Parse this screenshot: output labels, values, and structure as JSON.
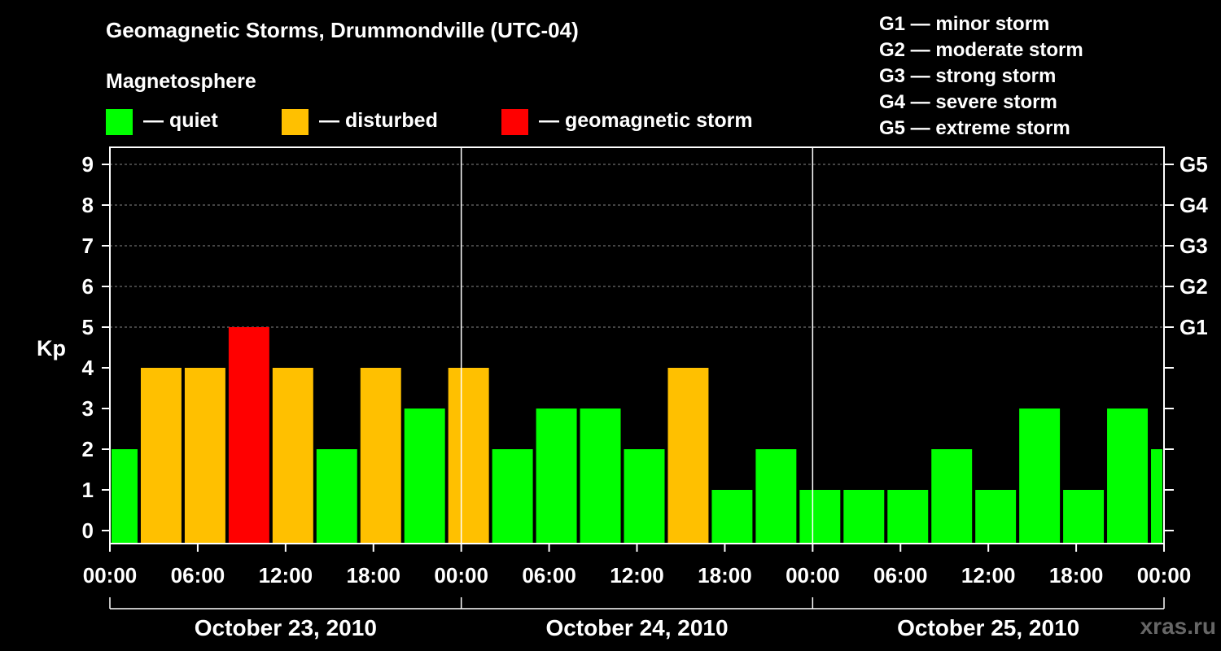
{
  "title": "Geomagnetic Storms, Drummondville (UTC-04)",
  "legend": {
    "heading": "Magnetosphere",
    "items": [
      {
        "label": "— quiet",
        "color": "#00ff00"
      },
      {
        "label": "— disturbed",
        "color": "#ffc000"
      },
      {
        "label": "— geomagnetic storm",
        "color": "#ff0000"
      }
    ]
  },
  "g_scale": [
    "G1 — minor storm",
    "G2 — moderate storm",
    "G3 — strong storm",
    "G4 — severe storm",
    "G5 — extreme storm"
  ],
  "watermark": "xras.ru",
  "chart_data": {
    "type": "bar",
    "ylabel": "Kp",
    "ylim": [
      0,
      9
    ],
    "y_ticks": [
      0,
      1,
      2,
      3,
      4,
      5,
      6,
      7,
      8,
      9
    ],
    "right_ticks": [
      {
        "value": 5,
        "label": "G1"
      },
      {
        "value": 6,
        "label": "G2"
      },
      {
        "value": 7,
        "label": "G3"
      },
      {
        "value": 8,
        "label": "G4"
      },
      {
        "value": 9,
        "label": "G5"
      }
    ],
    "x_tick_labels": [
      "00:00",
      "06:00",
      "12:00",
      "18:00",
      "00:00",
      "06:00",
      "12:00",
      "18:00",
      "00:00",
      "06:00",
      "12:00",
      "18:00",
      "00:00"
    ],
    "days": [
      "October 23, 2010",
      "October 24, 2010",
      "October 25, 2010"
    ],
    "x_unit": "hours since October 23, 2010 00:00 (UTC-04)",
    "xlim": [
      0,
      72
    ],
    "bars": [
      {
        "start": 0,
        "end": 2,
        "kp": 2,
        "color": "#00ff00"
      },
      {
        "start": 2,
        "end": 5,
        "kp": 4,
        "color": "#ffc000"
      },
      {
        "start": 5,
        "end": 8,
        "kp": 4,
        "color": "#ffc000"
      },
      {
        "start": 8,
        "end": 11,
        "kp": 5,
        "color": "#ff0000"
      },
      {
        "start": 11,
        "end": 14,
        "kp": 4,
        "color": "#ffc000"
      },
      {
        "start": 14,
        "end": 17,
        "kp": 2,
        "color": "#00ff00"
      },
      {
        "start": 17,
        "end": 20,
        "kp": 4,
        "color": "#ffc000"
      },
      {
        "start": 20,
        "end": 23,
        "kp": 3,
        "color": "#00ff00"
      },
      {
        "start": 23,
        "end": 26,
        "kp": 4,
        "color": "#ffc000"
      },
      {
        "start": 26,
        "end": 29,
        "kp": 2,
        "color": "#00ff00"
      },
      {
        "start": 29,
        "end": 32,
        "kp": 3,
        "color": "#00ff00"
      },
      {
        "start": 32,
        "end": 35,
        "kp": 3,
        "color": "#00ff00"
      },
      {
        "start": 35,
        "end": 38,
        "kp": 2,
        "color": "#00ff00"
      },
      {
        "start": 38,
        "end": 41,
        "kp": 4,
        "color": "#ffc000"
      },
      {
        "start": 41,
        "end": 44,
        "kp": 1,
        "color": "#00ff00"
      },
      {
        "start": 44,
        "end": 47,
        "kp": 2,
        "color": "#00ff00"
      },
      {
        "start": 47,
        "end": 50,
        "kp": 1,
        "color": "#00ff00"
      },
      {
        "start": 50,
        "end": 53,
        "kp": 1,
        "color": "#00ff00"
      },
      {
        "start": 53,
        "end": 56,
        "kp": 1,
        "color": "#00ff00"
      },
      {
        "start": 56,
        "end": 59,
        "kp": 2,
        "color": "#00ff00"
      },
      {
        "start": 59,
        "end": 62,
        "kp": 1,
        "color": "#00ff00"
      },
      {
        "start": 62,
        "end": 65,
        "kp": 3,
        "color": "#00ff00"
      },
      {
        "start": 65,
        "end": 68,
        "kp": 1,
        "color": "#00ff00"
      },
      {
        "start": 68,
        "end": 71,
        "kp": 3,
        "color": "#00ff00"
      },
      {
        "start": 71,
        "end": 72,
        "kp": 2,
        "color": "#00ff00"
      }
    ]
  }
}
